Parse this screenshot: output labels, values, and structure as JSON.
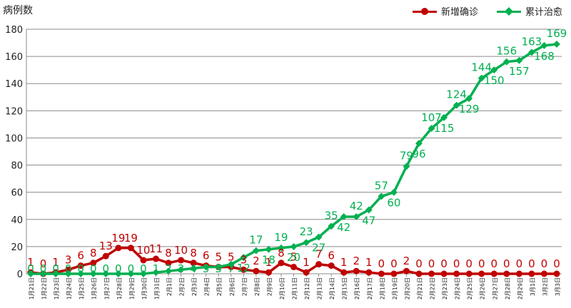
{
  "chart_data": {
    "type": "line",
    "ylabel": "病例数",
    "ylim": [
      0,
      180
    ],
    "yticks": [
      0,
      20,
      40,
      60,
      80,
      100,
      120,
      140,
      160,
      180
    ],
    "grid": true,
    "legend_position": "top-right",
    "categories": [
      "1月21日",
      "1月22日",
      "1月23日",
      "1月24日",
      "1月25日",
      "1月26日",
      "1月27日",
      "1月28日",
      "1月29日",
      "1月30日",
      "1月31日",
      "2月1日",
      "2月2日",
      "2月3日",
      "2月4日",
      "2月5日",
      "2月6日",
      "2月7日",
      "2月8日",
      "2月9日",
      "2月10日",
      "2月11日",
      "2月12日",
      "2月13日",
      "2月14日",
      "2月15日",
      "2月16日",
      "2月17日",
      "2月18日",
      "2月19日",
      "2月20日",
      "2月21日",
      "2月22日",
      "2月23日",
      "2月24日",
      "2月25日",
      "2月26日",
      "2月27日",
      "2月28日",
      "2月29日",
      "3月1日",
      "3月2日",
      "3月3日"
    ],
    "series": [
      {
        "name": "新增确诊",
        "color": "#c00000",
        "marker": "circle",
        "values": [
          1,
          0,
          1,
          3,
          6,
          8,
          13,
          19,
          19,
          10,
          11,
          8,
          10,
          8,
          6,
          5,
          5,
          3,
          2,
          1,
          8,
          5,
          1,
          7,
          6,
          1,
          2,
          1,
          0,
          0,
          2,
          0,
          0,
          0,
          0,
          0,
          0,
          0,
          0,
          0,
          0,
          0,
          0
        ]
      },
      {
        "name": "累计治愈",
        "color": "#00b050",
        "marker": "diamond",
        "values": [
          0,
          0,
          0,
          0,
          0,
          0,
          0,
          0,
          0,
          0,
          1,
          2,
          3,
          4,
          5,
          5,
          7,
          12,
          17,
          18,
          19,
          20,
          23,
          27,
          35,
          42,
          42,
          47,
          57,
          60,
          79,
          96,
          107,
          115,
          124,
          129,
          144,
          150,
          156,
          157,
          163,
          168,
          169
        ]
      }
    ]
  }
}
